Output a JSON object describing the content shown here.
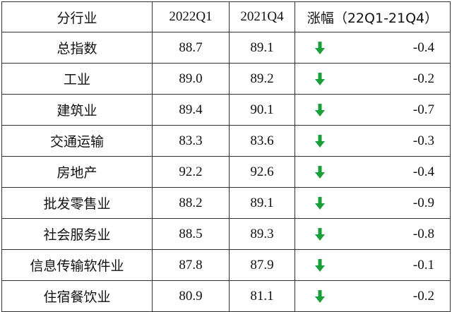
{
  "table": {
    "headers": [
      "分行业",
      "2022Q1",
      "2021Q4",
      "涨幅（22Q1-21Q4）"
    ],
    "rows": [
      {
        "industry": "总指数",
        "q1_2022": "88.7",
        "q4_2021": "89.1",
        "change": "-0.4",
        "trend": "down"
      },
      {
        "industry": "工业",
        "q1_2022": "89.0",
        "q4_2021": "89.2",
        "change": "-0.2",
        "trend": "down"
      },
      {
        "industry": "建筑业",
        "q1_2022": "89.4",
        "q4_2021": "90.1",
        "change": "-0.7",
        "trend": "down"
      },
      {
        "industry": "交通运输",
        "q1_2022": "83.3",
        "q4_2021": "83.6",
        "change": "-0.3",
        "trend": "down"
      },
      {
        "industry": "房地产",
        "q1_2022": "92.2",
        "q4_2021": "92.6",
        "change": "-0.4",
        "trend": "down"
      },
      {
        "industry": "批发零售业",
        "q1_2022": "88.2",
        "q4_2021": "89.1",
        "change": "-0.9",
        "trend": "down"
      },
      {
        "industry": "社会服务业",
        "q1_2022": "88.5",
        "q4_2021": "89.3",
        "change": "-0.8",
        "trend": "down"
      },
      {
        "industry": "信息传输软件业",
        "q1_2022": "87.8",
        "q4_2021": "87.9",
        "change": "-0.1",
        "trend": "down"
      },
      {
        "industry": "住宿餐饮业",
        "q1_2022": "80.9",
        "q4_2021": "81.1",
        "change": "-0.2",
        "trend": "down"
      }
    ]
  },
  "colors": {
    "down_arrow": "#1a9e3a",
    "border": "#333333",
    "text": "#111111"
  },
  "icons": {
    "down_arrow": "arrow-down-icon"
  }
}
